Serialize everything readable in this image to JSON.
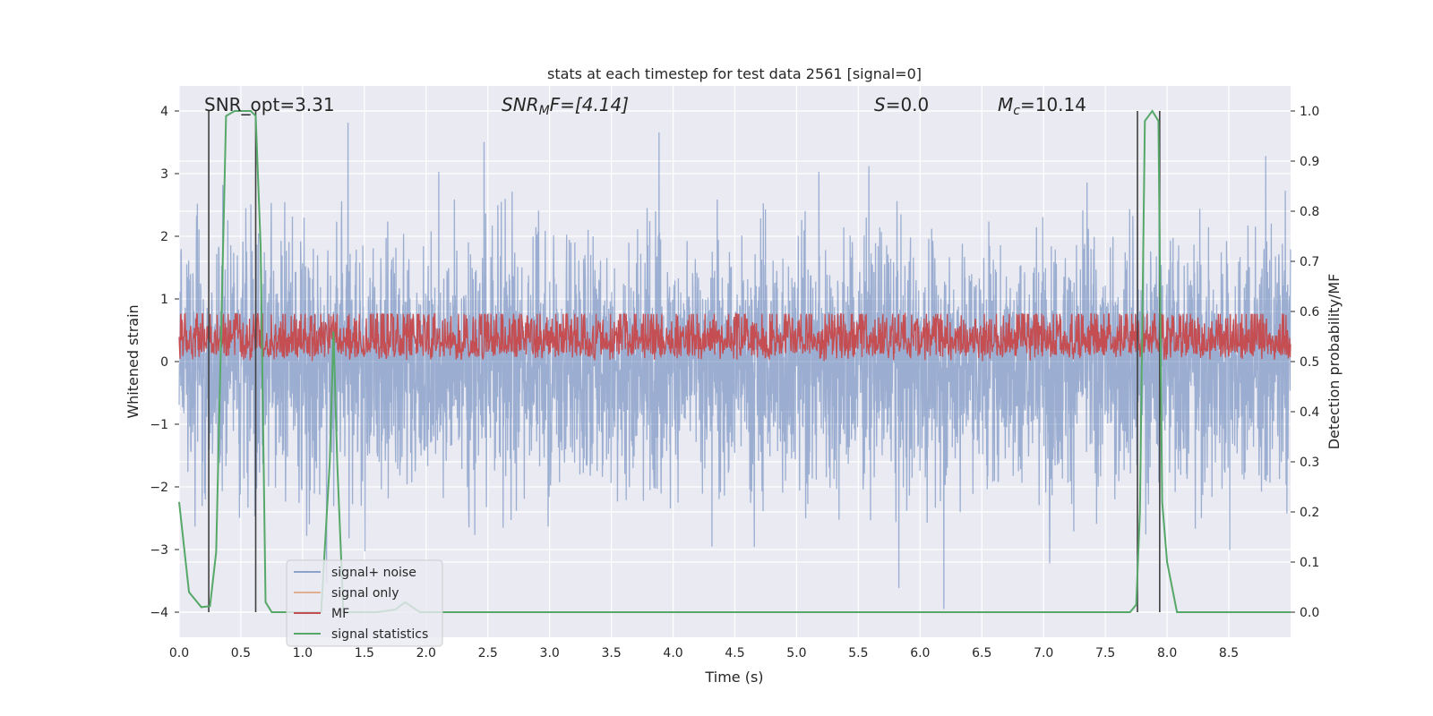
{
  "chart_data": {
    "type": "line",
    "title": "stats at each timestep for test data 2561 [signal=0]",
    "xlabel": "Time (s)",
    "ylabel_left": "Whitened strain",
    "ylabel_right": "Detection probability/MF",
    "xlim": [
      0.0,
      9.0
    ],
    "ylim_left": [
      -4.4,
      4.4
    ],
    "ylim_right": [
      -0.05,
      1.05
    ],
    "xticks": [
      "0.0",
      "0.5",
      "1.0",
      "1.5",
      "2.0",
      "2.5",
      "3.0",
      "3.5",
      "4.0",
      "4.5",
      "5.0",
      "5.5",
      "6.0",
      "6.5",
      "7.0",
      "7.5",
      "8.0",
      "8.5"
    ],
    "yticks_left": [
      "−4",
      "−3",
      "−2",
      "−1",
      "0",
      "1",
      "2",
      "3",
      "4"
    ],
    "yticks_right": [
      "0.0",
      "0.1",
      "0.2",
      "0.3",
      "0.4",
      "0.5",
      "0.6",
      "0.7",
      "0.8",
      "0.9",
      "1.0"
    ],
    "grid": true,
    "legend_placement": "lower-left",
    "annotations": {
      "snr_opt": "SNR_opt=3.31",
      "snr_mf_prefix": "SNR",
      "snr_mf_sub": "M",
      "snr_mf_suffix": "F=[4.14]",
      "s_prefix": "S",
      "s_value": "=0.0",
      "mc_prefix": "M",
      "mc_sub": "c",
      "mc_value": "=10.14"
    },
    "colors": {
      "background": "#eaeaf2",
      "grid": "#ffffff",
      "noise": "#4c72b0",
      "signal_only": "#dd8452",
      "mf": "#c44e52",
      "stat": "#55a868",
      "marker": "#404040"
    },
    "series": [
      {
        "name": "signal+ noise",
        "description_kind": "dense noise, range approx -3.9 to 3.9"
      },
      {
        "name": "signal only"
      },
      {
        "name": "MF",
        "baseline": 0.0,
        "range": [
          0.0,
          1.0
        ]
      },
      {
        "name": "signal statistics",
        "axis": "right",
        "x": [
          0.0,
          0.08,
          0.18,
          0.25,
          0.3,
          0.38,
          0.45,
          0.52,
          0.58,
          0.62,
          0.66,
          0.7,
          0.75,
          0.8,
          1.0,
          1.15,
          1.22,
          1.25,
          1.28,
          1.33,
          1.38,
          1.45,
          1.6,
          1.75,
          1.83,
          1.95,
          2.1,
          2.3,
          2.5,
          3.0,
          4.0,
          5.0,
          6.0,
          7.0,
          7.6,
          7.7,
          7.75,
          7.78,
          7.82,
          7.88,
          7.93,
          7.96,
          8.0,
          8.08,
          8.2,
          8.5,
          9.0
        ],
        "y": [
          0.22,
          0.04,
          0.01,
          0.012,
          0.12,
          0.99,
          1.0,
          1.0,
          1.0,
          0.99,
          0.73,
          0.02,
          0.0,
          0.0,
          0.0,
          0.0,
          0.3,
          0.56,
          0.3,
          0.0,
          0.0,
          0.0,
          0.0,
          0.005,
          0.02,
          0.0,
          0.0,
          0.0,
          0.0,
          0.0,
          0.0,
          0.0,
          0.0,
          0.0,
          0.0,
          0.0,
          0.015,
          0.2,
          0.98,
          1.0,
          0.98,
          0.22,
          0.1,
          0.0,
          0.0,
          0.0,
          0.0
        ]
      }
    ],
    "vertical_markers_x": [
      0.24,
      0.62,
      7.76,
      7.94
    ]
  }
}
